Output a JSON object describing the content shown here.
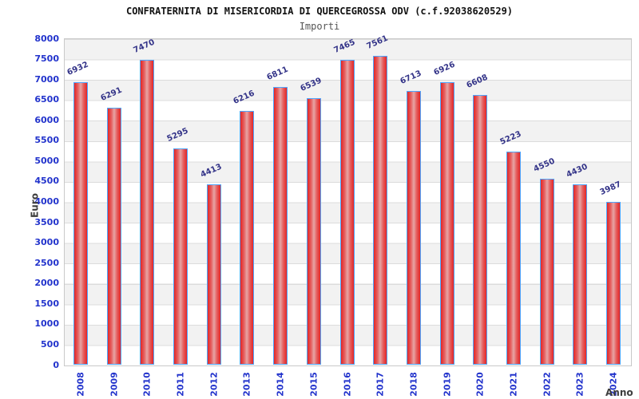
{
  "header": {
    "title": "CONFRATERNITA DI MISERICORDIA DI QUERCEGROSSA ODV (c.f.92038620529)",
    "subtitle": "Importi"
  },
  "chart_data": {
    "type": "bar",
    "title": "CONFRATERNITA DI MISERICORDIA DI QUERCEGROSSA ODV (c.f.92038620529)",
    "subtitle": "Importi",
    "xlabel": "Anno",
    "ylabel": "Euro",
    "categories": [
      "2008",
      "2009",
      "2010",
      "2011",
      "2012",
      "2013",
      "2014",
      "2015",
      "2016",
      "2017",
      "2018",
      "2019",
      "2020",
      "2021",
      "2022",
      "2023",
      "2024"
    ],
    "values": [
      6932,
      6291,
      7470,
      5295,
      4413,
      6216,
      6811,
      6539,
      7465,
      7561,
      6713,
      6926,
      6608,
      5223,
      4550,
      4430,
      3987
    ],
    "ylim": [
      0,
      8000
    ],
    "ytick_step": 500,
    "grid": true,
    "legend": false,
    "colors": {
      "bar_edge": "#e32525",
      "bar_center": "#e7a5a5",
      "bar_border": "#4da6ff",
      "tick_label_blue": "#2233cc",
      "value_label_navy": "#333388",
      "band_gray": "#f2f2f2",
      "band_white": "#ffffff",
      "gridline": "#dcdcdc",
      "axis_title_gray": "#3d3d3d",
      "title_black": "#111111",
      "subtitle_gray": "#555555"
    }
  }
}
